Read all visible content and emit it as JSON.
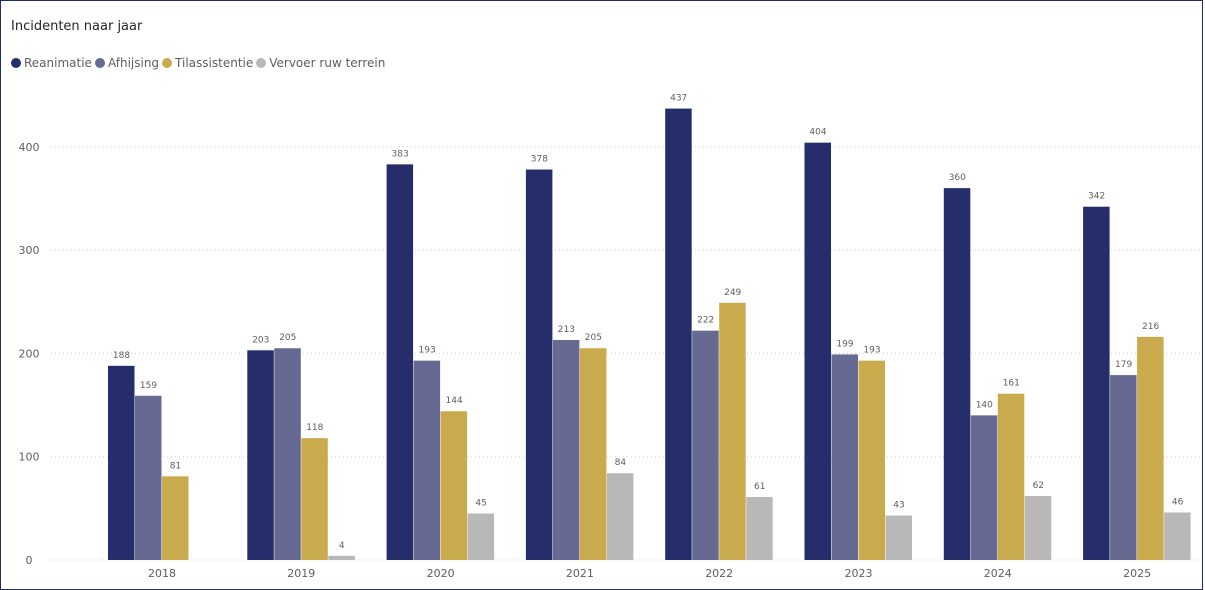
{
  "chart_data": {
    "type": "bar",
    "title": "Incidenten naar jaar",
    "categories": [
      "2018",
      "2019",
      "2020",
      "2021",
      "2022",
      "2023",
      "2024",
      "2025"
    ],
    "series": [
      {
        "name": "Reanimatie",
        "color": "#252e6b",
        "values": [
          188,
          203,
          383,
          378,
          437,
          404,
          360,
          342
        ]
      },
      {
        "name": "Afhijsing",
        "color": "#666a92",
        "values": [
          159,
          205,
          193,
          213,
          222,
          199,
          140,
          179
        ]
      },
      {
        "name": "Tilassistentie",
        "color": "#c9ab4e",
        "values": [
          81,
          118,
          144,
          205,
          249,
          193,
          161,
          216
        ]
      },
      {
        "name": "Vervoer ruw terrein",
        "color": "#b8b8b8",
        "values": [
          null,
          4,
          45,
          84,
          61,
          43,
          62,
          46
        ]
      }
    ],
    "yticks": [
      0,
      100,
      200,
      300,
      400
    ],
    "ylim": [
      0,
      450
    ],
    "xlabel": "",
    "ylabel": "",
    "legend_position": "top-left",
    "grid": true
  }
}
